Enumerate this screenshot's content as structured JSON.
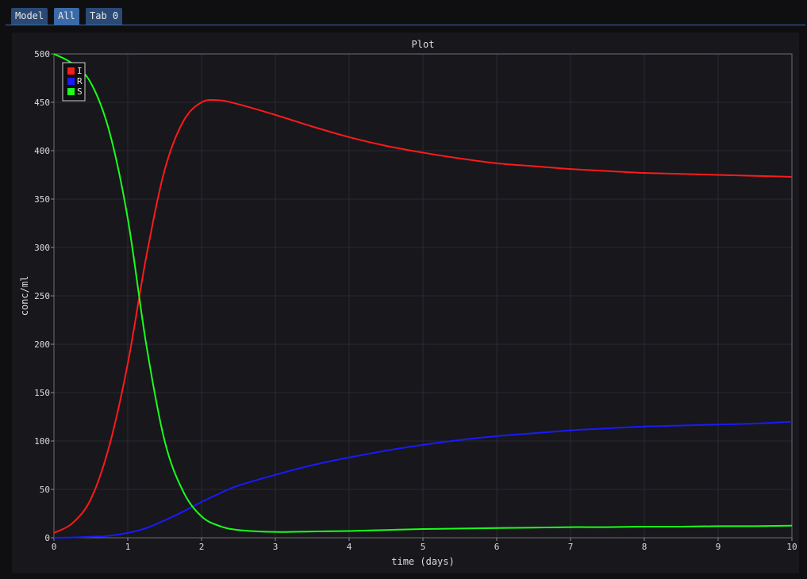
{
  "tabs": [
    {
      "label": "Model",
      "active": false
    },
    {
      "label": "All",
      "active": true
    },
    {
      "label": "Tab 0",
      "active": false
    }
  ],
  "colors": {
    "I": "#ff1a1a",
    "R": "#1a1aff",
    "S": "#1aff1a"
  },
  "chart_data": {
    "type": "line",
    "title": "Plot",
    "xlabel": "time (days)",
    "ylabel": "conc/ml",
    "xlim": [
      0,
      10
    ],
    "ylim": [
      0,
      500
    ],
    "xticks": [
      0,
      1,
      2,
      3,
      4,
      5,
      6,
      7,
      8,
      9,
      10
    ],
    "yticks": [
      0,
      50,
      100,
      150,
      200,
      250,
      300,
      350,
      400,
      450,
      500
    ],
    "grid": true,
    "legend_position": "top-left",
    "x": [
      0,
      0.25,
      0.5,
      0.75,
      1,
      1.25,
      1.5,
      1.75,
      2,
      2.25,
      2.5,
      3,
      3.5,
      4,
      4.5,
      5,
      5.5,
      6,
      6.5,
      7,
      7.5,
      8,
      8.5,
      9,
      9.5,
      10
    ],
    "series": [
      {
        "name": "I",
        "values": [
          5,
          15,
          40,
          95,
          180,
          290,
          380,
          430,
          450,
          452,
          448,
          437,
          425,
          414,
          405,
          398,
          392,
          387,
          384,
          381,
          379,
          377,
          376,
          375,
          374,
          373
        ]
      },
      {
        "name": "R",
        "values": [
          0,
          0.3,
          1,
          2,
          5,
          10,
          18,
          27,
          37,
          46,
          54,
          65,
          75,
          83,
          90,
          96,
          101,
          105,
          108,
          111,
          113,
          115,
          116,
          117,
          118,
          120
        ]
      },
      {
        "name": "S",
        "values": [
          500,
          490,
          470,
          420,
          330,
          200,
          100,
          48,
          22,
          12,
          8,
          6,
          6.5,
          7,
          8,
          9,
          9.5,
          10,
          10.5,
          11,
          11,
          11.5,
          11.5,
          12,
          12,
          12.5
        ]
      }
    ]
  }
}
